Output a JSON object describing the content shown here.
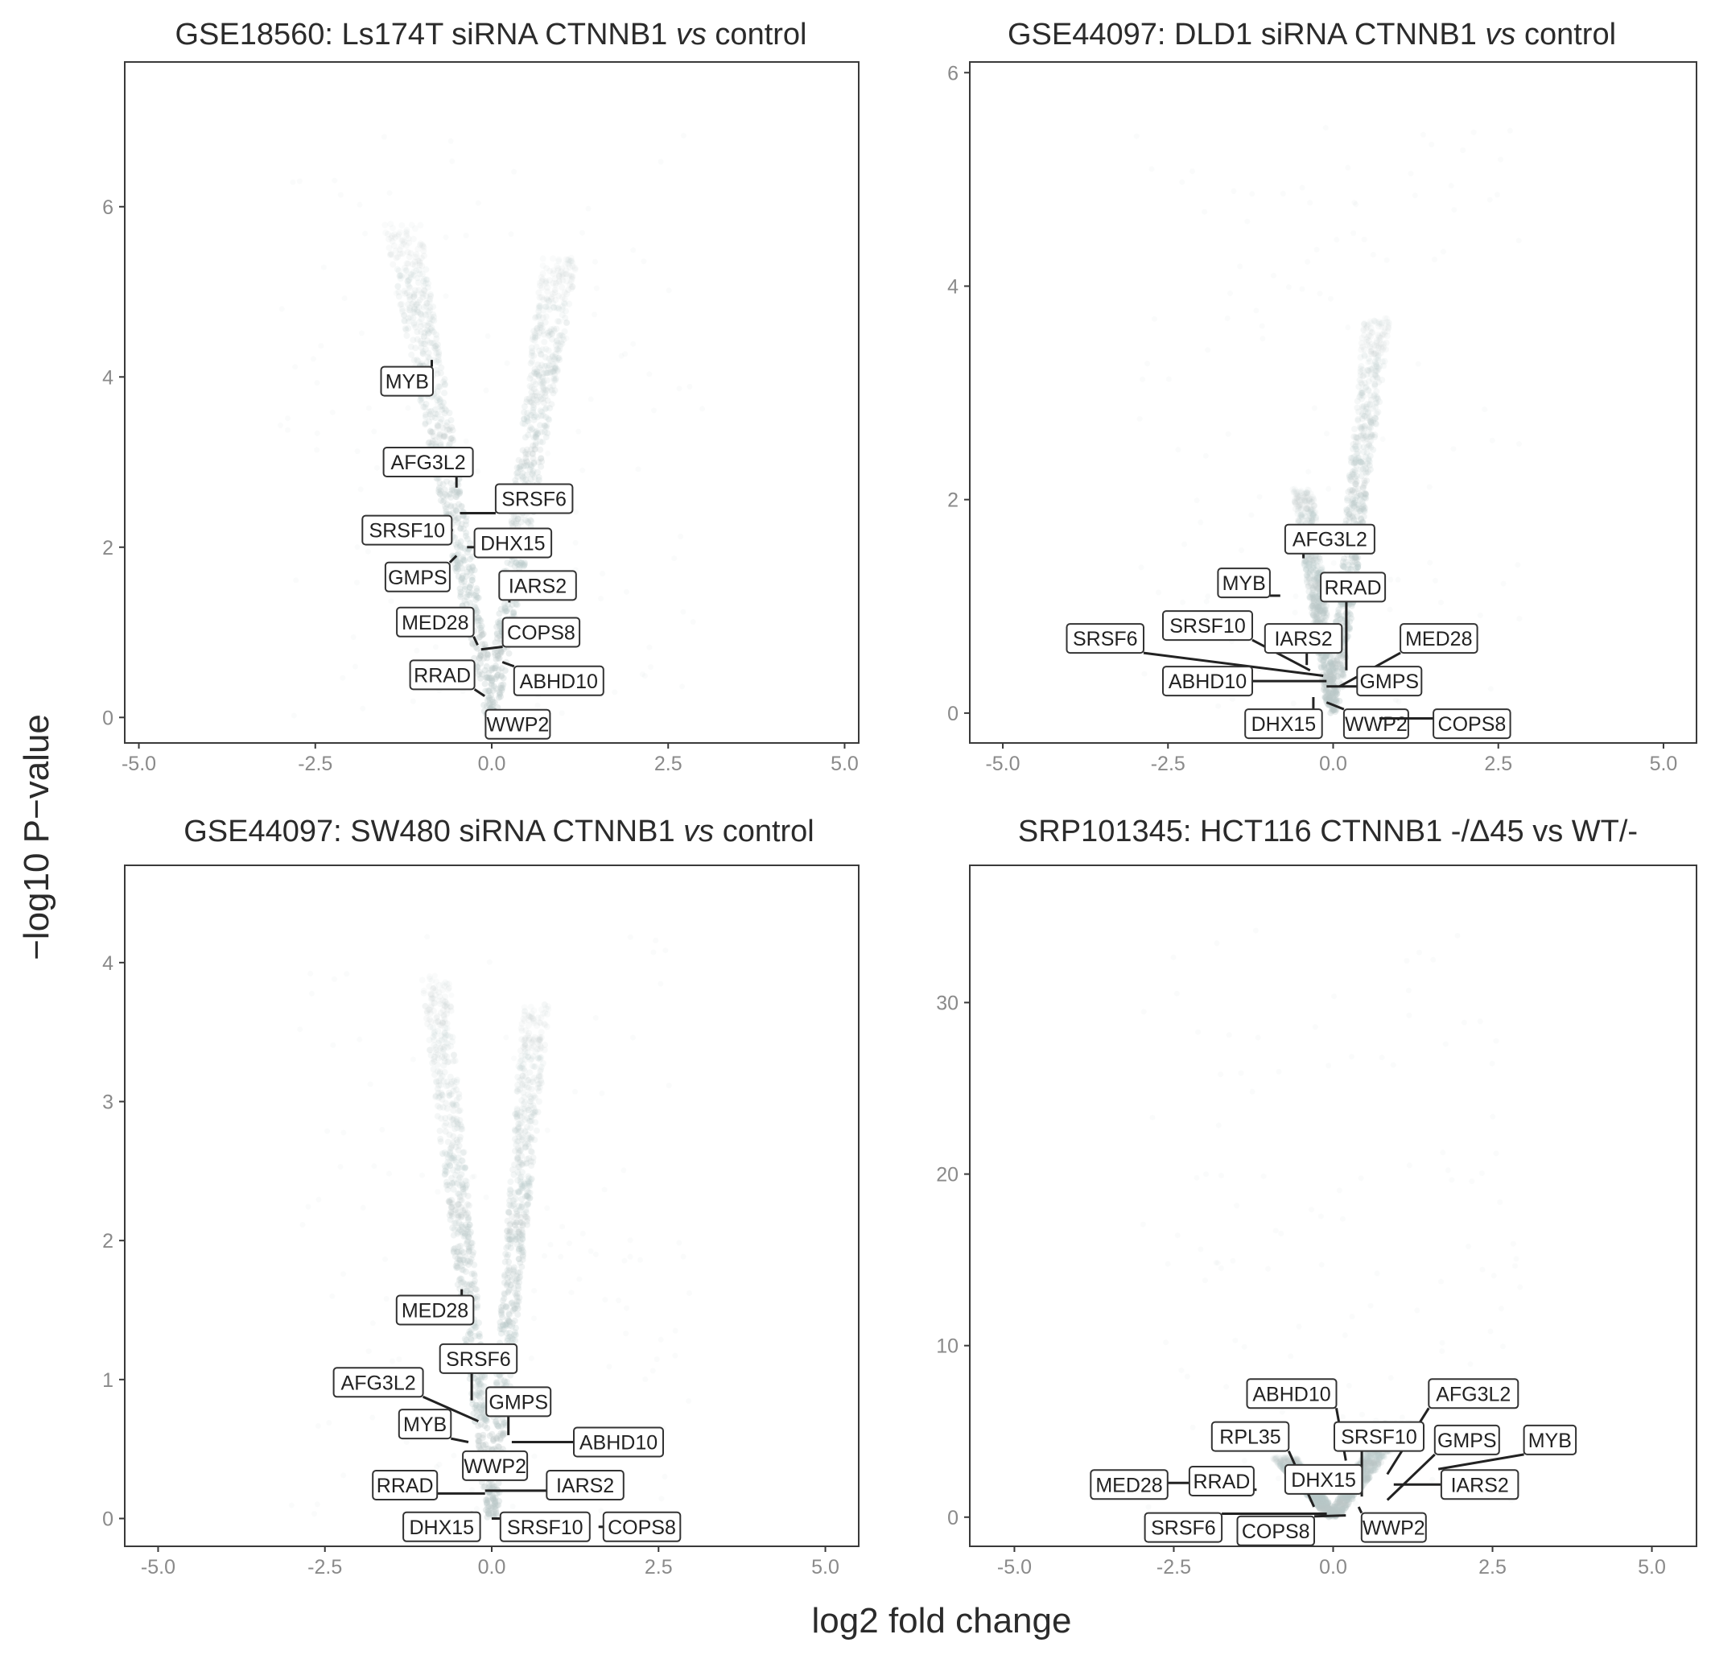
{
  "figure": {
    "xlabel": "log2 fold change",
    "ylabel": "−log10 P−value"
  },
  "colors": {
    "points": "#b9c7c7",
    "frame": "#3a3a3a",
    "label_border": "#333333",
    "text": "#2b2b2b"
  },
  "chart_data": [
    {
      "type": "scatter",
      "title_parts": [
        {
          "text": "GSE18560: Ls174T siRNA CTNNB1 ",
          "italic": false
        },
        {
          "text": "vs",
          "italic": true
        },
        {
          "text": " control",
          "italic": false
        }
      ],
      "xlim": [
        -5.2,
        5.2
      ],
      "ylim": [
        -0.3,
        7.7
      ],
      "xticks": [
        "-5.0",
        "-2.5",
        "0.0",
        "2.5",
        "5.0"
      ],
      "xtick_values": [
        -5,
        -2.5,
        0,
        2.5,
        5
      ],
      "yticks": [
        0,
        2,
        4,
        6
      ],
      "volcano": {
        "max_left": 5.8,
        "max_right": 5.4,
        "center": 0.0
      },
      "labels": [
        {
          "gene": "MYB",
          "x": -0.85,
          "y": 4.2,
          "lx": -1.2,
          "ly": 3.95
        },
        {
          "gene": "AFG3L2",
          "x": -0.5,
          "y": 2.7,
          "lx": -0.9,
          "ly": 3.0
        },
        {
          "gene": "SRSF6",
          "x": -0.45,
          "y": 2.4,
          "lx": 0.6,
          "ly": 2.57
        },
        {
          "gene": "SRSF10",
          "x": -0.55,
          "y": 2.2,
          "lx": -1.2,
          "ly": 2.2
        },
        {
          "gene": "DHX15",
          "x": -0.35,
          "y": 2.0,
          "lx": 0.3,
          "ly": 2.05
        },
        {
          "gene": "GMPS",
          "x": -0.5,
          "y": 1.9,
          "lx": -1.05,
          "ly": 1.65
        },
        {
          "gene": "IARS2",
          "x": 0.25,
          "y": 1.35,
          "lx": 0.65,
          "ly": 1.55
        },
        {
          "gene": "MED28",
          "x": -0.2,
          "y": 0.85,
          "lx": -0.8,
          "ly": 1.12
        },
        {
          "gene": "COPS8",
          "x": -0.15,
          "y": 0.8,
          "lx": 0.7,
          "ly": 1.0
        },
        {
          "gene": "RRAD",
          "x": -0.1,
          "y": 0.25,
          "lx": -0.7,
          "ly": 0.5
        },
        {
          "gene": "ABHD10",
          "x": 0.15,
          "y": 0.65,
          "lx": 0.95,
          "ly": 0.43
        },
        {
          "gene": "WWP2",
          "x": 0.05,
          "y": 0.1,
          "lx": 0.37,
          "ly": -0.08
        }
      ]
    },
    {
      "type": "scatter",
      "title_parts": [
        {
          "text": "GSE44097: DLD1 siRNA CTNNB1 ",
          "italic": false
        },
        {
          "text": "vs",
          "italic": true
        },
        {
          "text": " control",
          "italic": false
        }
      ],
      "xlim": [
        -5.5,
        5.5
      ],
      "ylim": [
        -0.28,
        6.1
      ],
      "xticks": [
        "-5.0",
        "-2.5",
        "0.0",
        "2.5",
        "5.0"
      ],
      "xtick_values": [
        -5,
        -2.5,
        0,
        2.5,
        5
      ],
      "yticks": [
        0,
        2,
        4,
        6
      ],
      "volcano": {
        "max_left": 2.1,
        "max_right": 3.7,
        "center": 0.0
      },
      "labels": [
        {
          "gene": "AFG3L2",
          "x": -0.45,
          "y": 1.45,
          "lx": -0.05,
          "ly": 1.63
        },
        {
          "gene": "MYB",
          "x": -0.8,
          "y": 1.1,
          "lx": -1.35,
          "ly": 1.22
        },
        {
          "gene": "RRAD",
          "x": 0.2,
          "y": 0.4,
          "lx": 0.3,
          "ly": 1.18
        },
        {
          "gene": "SRSF10",
          "x": -0.35,
          "y": 0.4,
          "lx": -1.9,
          "ly": 0.82
        },
        {
          "gene": "SRSF6",
          "x": -0.15,
          "y": 0.35,
          "lx": -3.45,
          "ly": 0.7
        },
        {
          "gene": "IARS2",
          "x": -0.4,
          "y": 0.45,
          "lx": -0.45,
          "ly": 0.7
        },
        {
          "gene": "MED28",
          "x": 0.1,
          "y": 0.25,
          "lx": 1.6,
          "ly": 0.7
        },
        {
          "gene": "ABHD10",
          "x": -0.1,
          "y": 0.3,
          "lx": -1.9,
          "ly": 0.3
        },
        {
          "gene": "GMPS",
          "x": -0.1,
          "y": 0.25,
          "lx": 0.85,
          "ly": 0.3
        },
        {
          "gene": "DHX15",
          "x": -0.3,
          "y": 0.15,
          "lx": -0.75,
          "ly": -0.1
        },
        {
          "gene": "WWP2",
          "x": -0.1,
          "y": 0.1,
          "lx": 0.65,
          "ly": -0.1
        },
        {
          "gene": "COPS8",
          "x": 0.7,
          "y": -0.05,
          "lx": 2.1,
          "ly": -0.1
        }
      ]
    },
    {
      "type": "scatter",
      "title_parts": [
        {
          "text": "GSE44097: SW480 siRNA CTNNB1 ",
          "italic": false
        },
        {
          "text": "vs",
          "italic": true
        },
        {
          "text": " control",
          "italic": false
        }
      ],
      "xlim": [
        -5.5,
        5.5
      ],
      "ylim": [
        -0.2,
        4.7
      ],
      "xticks": [
        "-5.0",
        "-2.5",
        "0.0",
        "2.5",
        "5.0"
      ],
      "xtick_values": [
        -5,
        -2.5,
        0,
        2.5,
        5
      ],
      "yticks": [
        0,
        1,
        2,
        3,
        4
      ],
      "volcano": {
        "max_left": 3.9,
        "max_right": 3.7,
        "center": 0.0
      },
      "labels": [
        {
          "gene": "MED28",
          "x": -0.45,
          "y": 1.65,
          "lx": -0.85,
          "ly": 1.5
        },
        {
          "gene": "SRSF6",
          "x": -0.3,
          "y": 0.85,
          "lx": -0.2,
          "ly": 1.15
        },
        {
          "gene": "AFG3L2",
          "x": -0.2,
          "y": 0.7,
          "lx": -1.7,
          "ly": 0.98
        },
        {
          "gene": "GMPS",
          "x": 0.25,
          "y": 0.6,
          "lx": 0.4,
          "ly": 0.84
        },
        {
          "gene": "MYB",
          "x": -0.35,
          "y": 0.55,
          "lx": -1.0,
          "ly": 0.68
        },
        {
          "gene": "ABHD10",
          "x": 0.3,
          "y": 0.55,
          "lx": 1.9,
          "ly": 0.55
        },
        {
          "gene": "WWP2",
          "x": -0.3,
          "y": 0.4,
          "lx": 0.05,
          "ly": 0.38
        },
        {
          "gene": "RRAD",
          "x": -0.1,
          "y": 0.18,
          "lx": -1.3,
          "ly": 0.24
        },
        {
          "gene": "IARS2",
          "x": -0.1,
          "y": 0.2,
          "lx": 1.4,
          "ly": 0.24
        },
        {
          "gene": "DHX15",
          "x": -0.3,
          "y": 0.05,
          "lx": -0.75,
          "ly": -0.06
        },
        {
          "gene": "SRSF10",
          "x": 0.0,
          "y": 0.0,
          "lx": 0.8,
          "ly": -0.06
        },
        {
          "gene": "COPS8",
          "x": 1.6,
          "y": -0.06,
          "lx": 2.25,
          "ly": -0.06
        }
      ]
    },
    {
      "type": "scatter",
      "title_parts": [
        {
          "text": "SRP101345: HCT116 CTNNB1 -/Δ45 vs WT/-",
          "italic": false
        }
      ],
      "xlim": [
        -5.7,
        5.7
      ],
      "ylim": [
        -1.7,
        38.0
      ],
      "xticks": [
        "-5.0",
        "-2.5",
        "0.0",
        "2.5",
        "5.0"
      ],
      "xtick_values": [
        -5,
        -2.5,
        0,
        2.5,
        5
      ],
      "yticks": [
        0,
        10,
        20,
        30
      ],
      "volcano": {
        "max_left": 3.5,
        "max_right": 5.5,
        "center": 0.0
      },
      "labels": [
        {
          "gene": "ABHD10",
          "x": 0.2,
          "y": 3.3,
          "lx": -0.65,
          "ly": 7.2
        },
        {
          "gene": "AFG3L2",
          "x": 0.85,
          "y": 2.5,
          "lx": 2.2,
          "ly": 7.2
        },
        {
          "gene": "RPL35",
          "x": -0.3,
          "y": 0.6,
          "lx": -1.3,
          "ly": 4.7
        },
        {
          "gene": "SRSF10",
          "x": 0.45,
          "y": 1.2,
          "lx": 0.72,
          "ly": 4.7
        },
        {
          "gene": "GMPS",
          "x": 0.85,
          "y": 1.0,
          "lx": 2.1,
          "ly": 4.5
        },
        {
          "gene": "MYB",
          "x": 1.65,
          "y": 2.8,
          "lx": 3.4,
          "ly": 4.5
        },
        {
          "gene": "DHX15",
          "x": 0.25,
          "y": 1.4,
          "lx": -0.15,
          "ly": 2.2
        },
        {
          "gene": "MED28",
          "x": -2.25,
          "y": 2.0,
          "lx": -3.2,
          "ly": 1.9
        },
        {
          "gene": "RRAD",
          "x": -1.2,
          "y": 1.6,
          "lx": -1.75,
          "ly": 2.1
        },
        {
          "gene": "IARS2",
          "x": 0.95,
          "y": 1.9,
          "lx": 2.3,
          "ly": 1.9
        },
        {
          "gene": "SRSF6",
          "x": -0.1,
          "y": 0.2,
          "lx": -2.35,
          "ly": -0.6
        },
        {
          "gene": "COPS8",
          "x": 0.2,
          "y": 0.1,
          "lx": -0.9,
          "ly": -0.8
        },
        {
          "gene": "WWP2",
          "x": 0.4,
          "y": 0.6,
          "lx": 0.95,
          "ly": -0.6
        }
      ]
    }
  ]
}
